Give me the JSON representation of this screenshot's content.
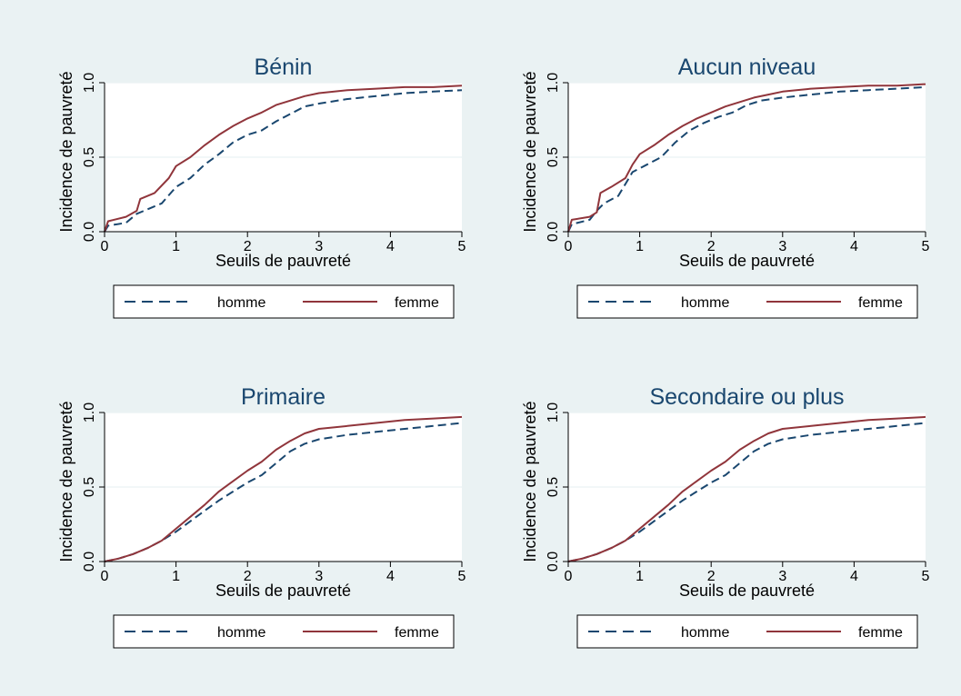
{
  "colors": {
    "background": "#eaf2f3",
    "plot_background": "#ffffff",
    "grid": "#eaf2f3",
    "homme": "#1a476f",
    "femme": "#90353b",
    "title": "#1a476f",
    "text": "#000000"
  },
  "legend": {
    "homme": "homme",
    "femme": "femme"
  },
  "chart_data": [
    {
      "type": "line",
      "title": "Bénin",
      "xlabel": "Seuils de pauvreté",
      "ylabel": "Incidence de pauvreté",
      "xlim": [
        0,
        5
      ],
      "ylim": [
        0,
        1
      ],
      "xticks": [
        "0",
        "1",
        "2",
        "3",
        "4",
        "5"
      ],
      "yticks": [
        "0.0",
        "0.5",
        "1.0"
      ],
      "grid": true,
      "legend_position": "bottom",
      "series": [
        {
          "name": "homme",
          "style": "dashed",
          "x": [
            0,
            0.05,
            0.3,
            0.45,
            0.6,
            0.8,
            1.0,
            1.2,
            1.4,
            1.6,
            1.8,
            2.0,
            2.2,
            2.4,
            2.6,
            2.8,
            3.0,
            3.4,
            3.8,
            4.2,
            4.6,
            5.0
          ],
          "y": [
            0.0,
            0.04,
            0.06,
            0.12,
            0.15,
            0.19,
            0.3,
            0.36,
            0.45,
            0.52,
            0.6,
            0.65,
            0.68,
            0.74,
            0.79,
            0.84,
            0.86,
            0.89,
            0.91,
            0.93,
            0.94,
            0.95
          ]
        },
        {
          "name": "femme",
          "style": "solid",
          "x": [
            0,
            0.05,
            0.3,
            0.45,
            0.5,
            0.7,
            0.9,
            1.0,
            1.2,
            1.4,
            1.6,
            1.8,
            2.0,
            2.2,
            2.4,
            2.6,
            2.8,
            3.0,
            3.4,
            3.8,
            4.2,
            4.6,
            5.0
          ],
          "y": [
            0.0,
            0.07,
            0.1,
            0.14,
            0.22,
            0.26,
            0.36,
            0.44,
            0.5,
            0.58,
            0.65,
            0.71,
            0.76,
            0.8,
            0.85,
            0.88,
            0.91,
            0.93,
            0.95,
            0.96,
            0.97,
            0.97,
            0.98
          ]
        }
      ]
    },
    {
      "type": "line",
      "title": "Aucun niveau",
      "xlabel": "Seuils de pauvreté",
      "ylabel": "Incidence de pauvreté",
      "xlim": [
        0,
        5
      ],
      "ylim": [
        0,
        1
      ],
      "xticks": [
        "0",
        "1",
        "2",
        "3",
        "4",
        "5"
      ],
      "yticks": [
        "0.0",
        "0.5",
        "1.0"
      ],
      "grid": true,
      "legend_position": "bottom",
      "series": [
        {
          "name": "homme",
          "style": "dashed",
          "x": [
            0,
            0.05,
            0.3,
            0.4,
            0.5,
            0.7,
            0.8,
            0.9,
            1.1,
            1.3,
            1.5,
            1.7,
            1.9,
            2.1,
            2.3,
            2.5,
            2.7,
            3.0,
            3.4,
            3.8,
            4.2,
            4.6,
            5.0
          ],
          "y": [
            0.0,
            0.05,
            0.08,
            0.14,
            0.19,
            0.24,
            0.32,
            0.4,
            0.45,
            0.5,
            0.6,
            0.68,
            0.73,
            0.77,
            0.8,
            0.85,
            0.88,
            0.9,
            0.92,
            0.94,
            0.95,
            0.96,
            0.97
          ]
        },
        {
          "name": "femme",
          "style": "solid",
          "x": [
            0,
            0.05,
            0.3,
            0.4,
            0.45,
            0.6,
            0.8,
            0.9,
            1.0,
            1.2,
            1.4,
            1.6,
            1.8,
            2.0,
            2.2,
            2.4,
            2.6,
            2.8,
            3.0,
            3.4,
            3.8,
            4.2,
            4.6,
            5.0
          ],
          "y": [
            0.0,
            0.08,
            0.1,
            0.13,
            0.26,
            0.3,
            0.36,
            0.45,
            0.52,
            0.58,
            0.65,
            0.71,
            0.76,
            0.8,
            0.84,
            0.87,
            0.9,
            0.92,
            0.94,
            0.96,
            0.97,
            0.98,
            0.98,
            0.99
          ]
        }
      ]
    },
    {
      "type": "line",
      "title": "Primaire",
      "xlabel": "Seuils de pauvreté",
      "ylabel": "Incidence de pauvreté",
      "xlim": [
        0,
        5
      ],
      "ylim": [
        0,
        1
      ],
      "xticks": [
        "0",
        "1",
        "2",
        "3",
        "4",
        "5"
      ],
      "yticks": [
        "0.0",
        "0.5",
        "1.0"
      ],
      "grid": true,
      "legend_position": "bottom",
      "series": [
        {
          "name": "homme",
          "style": "dashed",
          "x": [
            0,
            0.2,
            0.4,
            0.6,
            0.8,
            1.0,
            1.2,
            1.4,
            1.6,
            1.8,
            2.0,
            2.2,
            2.4,
            2.6,
            2.8,
            3.0,
            3.4,
            3.8,
            4.2,
            4.6,
            5.0
          ],
          "y": [
            0.0,
            0.02,
            0.05,
            0.09,
            0.14,
            0.2,
            0.27,
            0.34,
            0.41,
            0.47,
            0.53,
            0.58,
            0.66,
            0.74,
            0.79,
            0.82,
            0.85,
            0.87,
            0.89,
            0.91,
            0.93
          ]
        },
        {
          "name": "femme",
          "style": "solid",
          "x": [
            0,
            0.2,
            0.4,
            0.6,
            0.8,
            1.0,
            1.2,
            1.4,
            1.6,
            1.8,
            2.0,
            2.2,
            2.4,
            2.6,
            2.8,
            3.0,
            3.4,
            3.8,
            4.2,
            4.6,
            5.0
          ],
          "y": [
            0.0,
            0.02,
            0.05,
            0.09,
            0.14,
            0.22,
            0.3,
            0.38,
            0.47,
            0.54,
            0.61,
            0.67,
            0.75,
            0.81,
            0.86,
            0.89,
            0.91,
            0.93,
            0.95,
            0.96,
            0.97
          ]
        }
      ]
    },
    {
      "type": "line",
      "title": "Secondaire ou plus",
      "xlabel": "Seuils de pauvreté",
      "ylabel": "Incidence de pauvreté",
      "xlim": [
        0,
        5
      ],
      "ylim": [
        0,
        1
      ],
      "xticks": [
        "0",
        "1",
        "2",
        "3",
        "4",
        "5"
      ],
      "yticks": [
        "0.0",
        "0.5",
        "1.0"
      ],
      "grid": true,
      "legend_position": "bottom",
      "series": [
        {
          "name": "homme",
          "style": "dashed",
          "x": [
            0,
            0.2,
            0.4,
            0.6,
            0.8,
            1.0,
            1.2,
            1.4,
            1.6,
            1.8,
            2.0,
            2.2,
            2.4,
            2.6,
            2.8,
            3.0,
            3.4,
            3.8,
            4.2,
            4.6,
            5.0
          ],
          "y": [
            0.0,
            0.02,
            0.05,
            0.09,
            0.14,
            0.2,
            0.27,
            0.34,
            0.41,
            0.47,
            0.53,
            0.58,
            0.66,
            0.74,
            0.79,
            0.82,
            0.85,
            0.87,
            0.89,
            0.91,
            0.93
          ]
        },
        {
          "name": "femme",
          "style": "solid",
          "x": [
            0,
            0.2,
            0.4,
            0.6,
            0.8,
            1.0,
            1.2,
            1.4,
            1.6,
            1.8,
            2.0,
            2.2,
            2.4,
            2.6,
            2.8,
            3.0,
            3.4,
            3.8,
            4.2,
            4.6,
            5.0
          ],
          "y": [
            0.0,
            0.02,
            0.05,
            0.09,
            0.14,
            0.22,
            0.3,
            0.38,
            0.47,
            0.54,
            0.61,
            0.67,
            0.75,
            0.81,
            0.86,
            0.89,
            0.91,
            0.93,
            0.95,
            0.96,
            0.97
          ]
        }
      ]
    }
  ]
}
